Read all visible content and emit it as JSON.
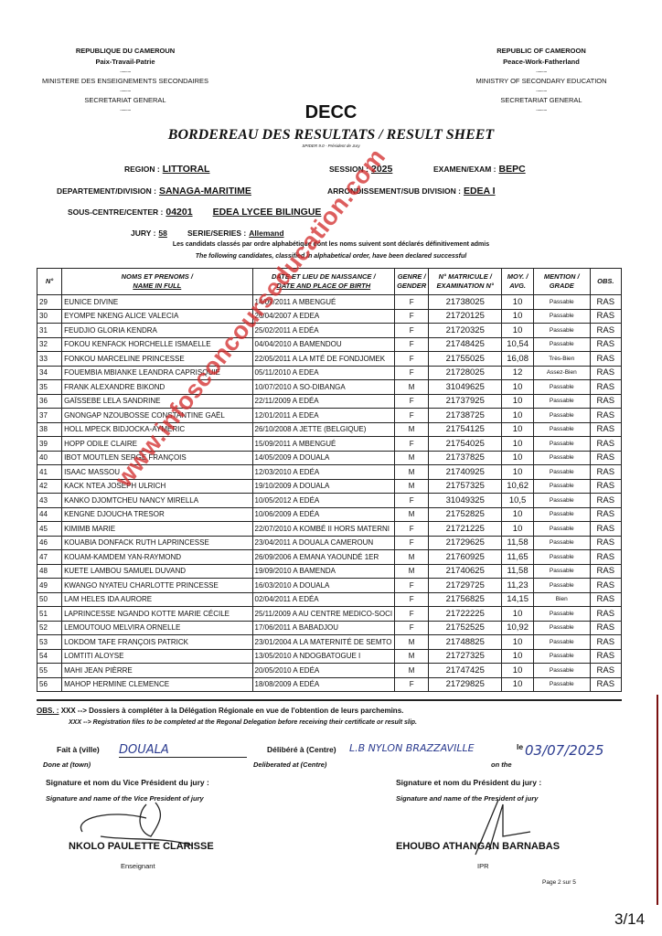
{
  "header_left": {
    "country": "REPUBLIQUE DU CAMEROUN",
    "motto": "Paix-Travail-Patrie",
    "ministry": "MINISTERE DES ENSEIGNEMENTS SECONDAIRES",
    "secretariat": "SECRETARIAT GENERAL"
  },
  "header_right": {
    "country": "REPUBLIC OF CAMEROON",
    "motto": "Peace-Work-Fatherland",
    "ministry": "MINISTRY OF SECONDARY EDUCATION",
    "secretariat": "SECRETARIAT GENERAL"
  },
  "separator": "..........",
  "org": "DECC",
  "title": "BORDEREAU DES RESULTATS / RESULT SHEET",
  "software": "SPIDER 9.0 - Président de Jury",
  "info": {
    "region_label": "REGION :",
    "region": "LITTORAL",
    "session_label": "SESSION :",
    "session": "2025",
    "exam_label": "EXAMEN/EXAM :",
    "exam": "BEPC",
    "division_label": "DEPARTEMENT/DIVISION :",
    "division": "SANAGA-MARITIME",
    "subdivision_label": "ARRONDISSEMENT/SUB DIVISION :",
    "subdivision": "EDEA I",
    "center_label": "SOUS-CENTRE/CENTER :",
    "center_code": "04201",
    "center_name": "EDEA LYCEE BILINGUE",
    "jury_label": "JURY :",
    "jury": "58",
    "series_label": "SERIE/SERIES :",
    "series": "Allemand"
  },
  "intro_fr": "Les candidats classés par ordre alphabétique dont les noms suivent sont déclarés définitivement admis",
  "intro_en": "The following candidates, classified in alphabetical order, have been declared successful",
  "columns": [
    {
      "l1": "N°",
      "l2": ""
    },
    {
      "l1": "NOMS ET PRENOMS /",
      "l2": "NAME IN FULL"
    },
    {
      "l1": "DATE ET LIEU DE NAISSANCE /",
      "l2": "DATE AND PLACE OF BIRTH"
    },
    {
      "l1": "GENRE /",
      "l2": "GENDER"
    },
    {
      "l1": "N° MATRICULE /",
      "l2": "EXAMINATION N°"
    },
    {
      "l1": "MOY. /",
      "l2": "AVG."
    },
    {
      "l1": "MENTION /",
      "l2": "GRADE"
    },
    {
      "l1": "OBS.",
      "l2": ""
    }
  ],
  "rows": [
    [
      "29",
      "EUNICE DIVINE",
      "14/09/2011 A MBENGUÉ",
      "F",
      "21738025",
      "10",
      "Passable",
      "RAS"
    ],
    [
      "30",
      "EYOMPE NKENG ALICE VALECIA",
      "26/04/2007 A EDEA",
      "F",
      "21720125",
      "10",
      "Passable",
      "RAS"
    ],
    [
      "31",
      "FEUDJIO GLORIA KENDRA",
      "25/02/2011 A EDÉA",
      "F",
      "21720325",
      "10",
      "Passable",
      "RAS"
    ],
    [
      "32",
      "FOKOU KENFACK HORCHELLE ISMAELLE",
      "04/04/2010 A BAMENDOU",
      "F",
      "21748425",
      "10,54",
      "Passable",
      "RAS"
    ],
    [
      "33",
      "FONKOU MARCELINE PRINCESSE",
      "22/05/2011 A LA MTÉ DE FONDJOMEK",
      "F",
      "21755025",
      "16,08",
      "Très-Bien",
      "RAS"
    ],
    [
      "34",
      "FOUEMBIA MBIANKE LEANDRA CAPRISQUIE",
      "05/11/2010 A EDEA",
      "F",
      "21728025",
      "12",
      "Assez-Bien",
      "RAS"
    ],
    [
      "35",
      "FRANK ALEXANDRE BIKOND",
      "10/07/2010 A SO-DIBANGA",
      "M",
      "31049625",
      "10",
      "Passable",
      "RAS"
    ],
    [
      "36",
      "GAÏSSEBE LELA SANDRINE",
      "22/11/2009 A EDÉA",
      "F",
      "21737925",
      "10",
      "Passable",
      "RAS"
    ],
    [
      "37",
      "GNONGAP NZOUBOSSE CONSTANTINE GAËL",
      "12/01/2011 A EDEA",
      "F",
      "21738725",
      "10",
      "Passable",
      "RAS"
    ],
    [
      "38",
      "HOLL MPECK BIDJOCKA-AYMERIC",
      "26/10/2008 A JETTE (BELGIQUE)",
      "M",
      "21754125",
      "10",
      "Passable",
      "RAS"
    ],
    [
      "39",
      "HOPP ODILE CLAIRE",
      "15/09/2011 A MBENGUÉ",
      "F",
      "21754025",
      "10",
      "Passable",
      "RAS"
    ],
    [
      "40",
      "IBOT MOUTLEN SERGE FRANÇOIS",
      "14/05/2009 A DOUALA",
      "M",
      "21737825",
      "10",
      "Passable",
      "RAS"
    ],
    [
      "41",
      "ISAAC MASSOU",
      "12/03/2010 A EDÉA",
      "M",
      "21740925",
      "10",
      "Passable",
      "RAS"
    ],
    [
      "42",
      "KACK NTEA JOSEPH ULRICH",
      "19/10/2009 A DOUALA",
      "M",
      "21757325",
      "10,62",
      "Passable",
      "RAS"
    ],
    [
      "43",
      "KANKO DJOMTCHEU NANCY MIRELLA",
      "10/05/2012 A EDÉA",
      "F",
      "31049325",
      "10,5",
      "Passable",
      "RAS"
    ],
    [
      "44",
      "KENGNE DJOUCHA TRESOR",
      "10/06/2009 A EDÉA",
      "M",
      "21752825",
      "10",
      "Passable",
      "RAS"
    ],
    [
      "45",
      "KIMIMB MARIE",
      "22/07/2010 A KOMBÉ II HORS MATERNI",
      "F",
      "21721225",
      "10",
      "Passable",
      "RAS"
    ],
    [
      "46",
      "KOUABIA DONFACK RUTH LAPRINCESSE",
      "23/04/2011 A DOUALA CAMEROUN",
      "F",
      "21729625",
      "11,58",
      "Passable",
      "RAS"
    ],
    [
      "47",
      "KOUAM-KAMDEM YAN-RAYMOND",
      "26/09/2006 A EMANA YAOUNDÉ 1ER",
      "M",
      "21760925",
      "11,65",
      "Passable",
      "RAS"
    ],
    [
      "48",
      "KUETE LAMBOU SAMUEL DUVAND",
      "19/09/2010 A BAMENDA",
      "M",
      "21740625",
      "11,58",
      "Passable",
      "RAS"
    ],
    [
      "49",
      "KWANGO NYATEU CHARLOTTE PRINCESSE",
      "16/03/2010 A DOUALA",
      "F",
      "21729725",
      "11,23",
      "Passable",
      "RAS"
    ],
    [
      "50",
      "LAM HELES IDA AURORE",
      "02/04/2011 A EDÉA",
      "F",
      "21756825",
      "14,15",
      "Bien",
      "RAS"
    ],
    [
      "51",
      "LAPRINCESSE NGANDO KOTTE MARIE CÉCILE",
      "25/11/2009 A AU CENTRE MEDICO-SOCI",
      "F",
      "21722225",
      "10",
      "Passable",
      "RAS"
    ],
    [
      "52",
      "LEMOUTOUO MELVIRA ORNELLE",
      "17/06/2011 A BABADJOU",
      "F",
      "21752525",
      "10,92",
      "Passable",
      "RAS"
    ],
    [
      "53",
      "LOKDOM TAFE FRANÇOIS PATRICK",
      "23/01/2004 A LA MATERNITÉ DE SEMTO",
      "M",
      "21748825",
      "10",
      "Passable",
      "RAS"
    ],
    [
      "54",
      "LOMTITI ALOYSE",
      "13/05/2010 A NDOGBATOGUE I",
      "M",
      "21727325",
      "10",
      "Passable",
      "RAS"
    ],
    [
      "55",
      "MAHI JEAN PIÈRRE",
      "20/05/2010 A EDÉA",
      "M",
      "21747425",
      "10",
      "Passable",
      "RAS"
    ],
    [
      "56",
      "MAHOP HERMINE CLEMENCE",
      "18/08/2009 A EDÉA",
      "F",
      "21729825",
      "10",
      "Passable",
      "RAS"
    ]
  ],
  "watermark": "www.infosconcourseducation.com",
  "obs": {
    "label": "OBS. :",
    "fr": "XXX --> Dossiers à compléter à la Délégation Régionale en vue de l'obtention de leurs parchemins.",
    "en": "XXX --> Registration files to be completed at the Regonal Delegation before receiving their certificate or result slip."
  },
  "footer": {
    "done_fr": "Fait à (ville)",
    "done_en": "Done at (town)",
    "town": "DOUALA",
    "delib_fr": "Délibéré à (Centre)",
    "delib_en": "Deliberated at (Centre)",
    "centre": "L.B NYLON BRAZZAVILLE",
    "on_fr": "le",
    "on_en": "on the",
    "date": "03/07/2025",
    "vp_fr": "Signature et nom du Vice Président du jury :",
    "vp_en": "Signature and name of the Vice President of jury",
    "p_fr": "Signature et nom  du Président du jury :",
    "p_en": "Signature and name of the President of jury",
    "vp_name": "NKOLO PAULETTE CLARISSE",
    "vp_role": "Enseignant",
    "p_name": "EHOUBO ATHANGAN BARNABAS",
    "p_role": "IPR",
    "page": "Page 2 sur 5"
  },
  "scan_page": "3/14"
}
